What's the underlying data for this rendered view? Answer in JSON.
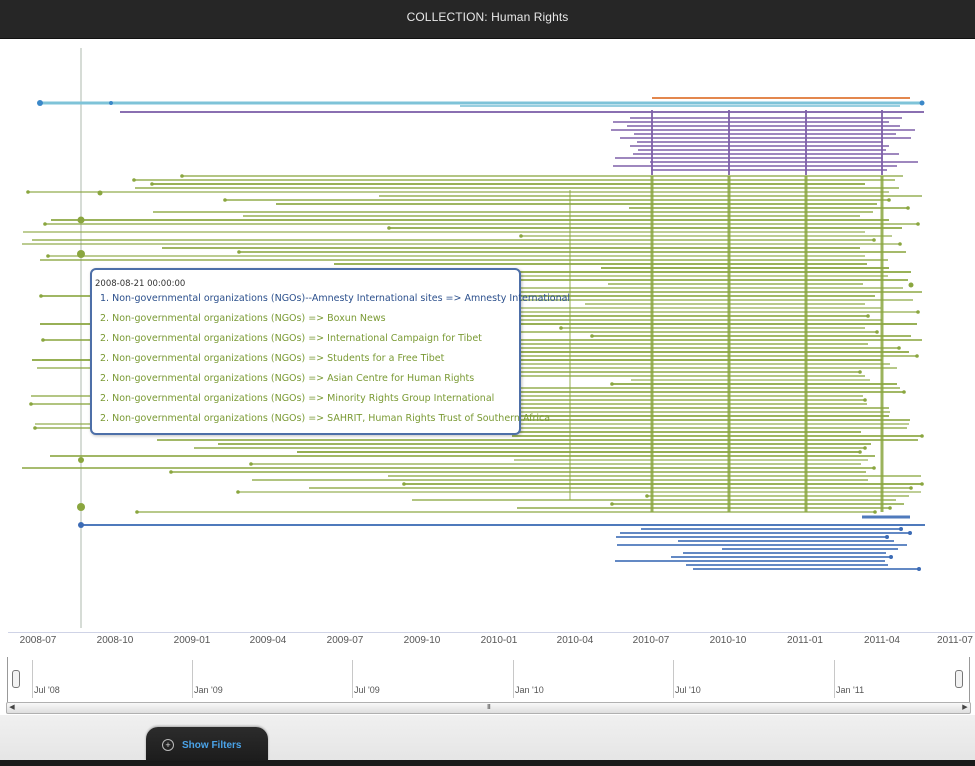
{
  "window": {
    "title": "COLLECTION: Human Rights"
  },
  "timeline": {
    "ticks": [
      "2008-07",
      "2008-10",
      "2009-01",
      "2009-04",
      "2009-07",
      "2009-10",
      "2010-01",
      "2010-04",
      "2010-07",
      "2010-10",
      "2011-01",
      "2011-04",
      "2011-07"
    ],
    "cursor_date": "2008-08-21",
    "colors": {
      "green": "#8aa63f",
      "purple": "#7d5fa8",
      "blue": "#3c6bb5",
      "orange": "#e07a3a",
      "lightblue": "#7ec3d8"
    }
  },
  "tooltip": {
    "date": "2008-08-21 00:00:00",
    "rows": [
      {
        "text": "1. Non-governmental organizations (NGOs)--Amnesty International sites => Amnesty International",
        "color": "#2b4f8c"
      },
      {
        "text": "2. Non-governmental organizations (NGOs) => Boxun News",
        "color": "#7a9a34"
      },
      {
        "text": "2. Non-governmental organizations (NGOs) => International Campaign for Tibet",
        "color": "#7a9a34"
      },
      {
        "text": "2. Non-governmental organizations (NGOs) => Students for a Free Tibet",
        "color": "#7a9a34"
      },
      {
        "text": "2. Non-governmental organizations (NGOs) => Asian Centre for Human Rights",
        "color": "#7a9a34"
      },
      {
        "text": "2. Non-governmental organizations (NGOs) => Minority Rights Group International",
        "color": "#7a9a34"
      },
      {
        "text": "2. Non-governmental organizations (NGOs) => SAHRIT, Human Rights Trust of Southern Africa",
        "color": "#7a9a34"
      }
    ]
  },
  "overview": {
    "labels": [
      "Jul '08",
      "Jan '09",
      "Jul '09",
      "Jan '10",
      "Jul '10",
      "Jan '11"
    ],
    "scroll_thumb": "III"
  },
  "footer": {
    "filters_label": "Show Filters"
  }
}
